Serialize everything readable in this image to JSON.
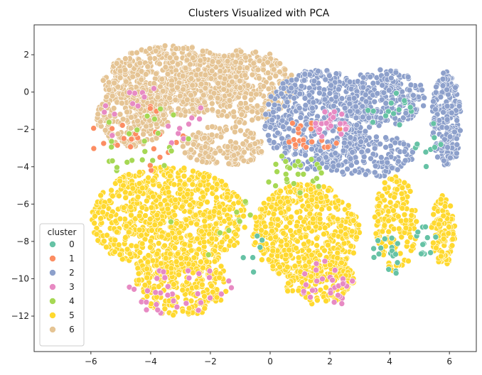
{
  "chart_data": {
    "type": "scatter",
    "title": "Clusters Visualized with PCA",
    "xlabel": "",
    "ylabel": "",
    "xlim": [
      -7.9,
      6.9
    ],
    "ylim": [
      -13.9,
      3.6
    ],
    "xticks": [
      -6,
      -4,
      -2,
      0,
      2,
      4,
      6
    ],
    "yticks": [
      2,
      0,
      -2,
      -4,
      -6,
      -8,
      -10,
      -12
    ],
    "grid": false,
    "legend": {
      "title": "cluster",
      "placement": "bottom-left",
      "entries": [
        "0",
        "1",
        "2",
        "3",
        "4",
        "5",
        "6"
      ]
    },
    "colors": {
      "0": "#66c2a5",
      "1": "#fc8d62",
      "2": "#8da0cb",
      "3": "#e78ac3",
      "4": "#a6d854",
      "5": "#ffd92f",
      "6": "#e5c494"
    },
    "series": [
      {
        "name": "6",
        "regions": [
          {
            "cx": -3.2,
            "cy": 0.6,
            "rx": 2.4,
            "ry": 1.9,
            "n": 700
          },
          {
            "cx": -0.8,
            "cy": 0.3,
            "rx": 1.6,
            "ry": 2.0,
            "n": 320
          },
          {
            "cx": -4.6,
            "cy": -1.3,
            "rx": 1.2,
            "ry": 1.6,
            "n": 200
          },
          {
            "cx": -1.6,
            "cy": -2.9,
            "rx": 1.4,
            "ry": 1.1,
            "n": 160
          }
        ]
      },
      {
        "name": "2",
        "regions": [
          {
            "cx": 1.6,
            "cy": -1.5,
            "rx": 1.8,
            "ry": 2.7,
            "n": 520
          },
          {
            "cx": 3.8,
            "cy": -0.3,
            "rx": 1.4,
            "ry": 1.5,
            "n": 240
          },
          {
            "cx": 5.9,
            "cy": -1.5,
            "rx": 0.5,
            "ry": 2.6,
            "n": 220
          },
          {
            "cx": 3.2,
            "cy": -3.4,
            "rx": 1.6,
            "ry": 1.2,
            "n": 160
          }
        ]
      },
      {
        "name": "5",
        "regions": [
          {
            "cx": -3.4,
            "cy": -6.8,
            "rx": 2.6,
            "ry": 2.8,
            "n": 800
          },
          {
            "cx": -3.0,
            "cy": -10.2,
            "rx": 1.6,
            "ry": 1.8,
            "n": 260
          },
          {
            "cx": 1.2,
            "cy": -7.5,
            "rx": 1.8,
            "ry": 2.6,
            "n": 520
          },
          {
            "cx": 1.6,
            "cy": -10.0,
            "rx": 1.2,
            "ry": 1.4,
            "n": 160
          },
          {
            "cx": 4.2,
            "cy": -7.0,
            "rx": 0.7,
            "ry": 2.6,
            "n": 160
          },
          {
            "cx": 5.8,
            "cy": -7.4,
            "rx": 0.4,
            "ry": 1.9,
            "n": 120
          }
        ]
      },
      {
        "name": "0",
        "regions": [
          {
            "cx": 3.9,
            "cy": -8.8,
            "rx": 0.5,
            "ry": 1.2,
            "n": 18
          },
          {
            "cx": 5.2,
            "cy": -7.8,
            "rx": 0.4,
            "ry": 1.0,
            "n": 12
          },
          {
            "cx": 4.0,
            "cy": -1.0,
            "rx": 0.8,
            "ry": 1.0,
            "n": 14
          },
          {
            "cx": 5.3,
            "cy": -3.0,
            "rx": 0.5,
            "ry": 1.5,
            "n": 10
          },
          {
            "cx": -0.5,
            "cy": -8.5,
            "rx": 0.5,
            "ry": 1.2,
            "n": 6
          }
        ]
      },
      {
        "name": "1",
        "regions": [
          {
            "cx": -4.4,
            "cy": -2.5,
            "rx": 1.6,
            "ry": 1.8,
            "n": 25
          },
          {
            "cx": 1.4,
            "cy": -2.3,
            "rx": 1.0,
            "ry": 0.9,
            "n": 25
          }
        ]
      },
      {
        "name": "3",
        "regions": [
          {
            "cx": -3.0,
            "cy": -10.6,
            "rx": 1.8,
            "ry": 1.4,
            "n": 35
          },
          {
            "cx": 1.9,
            "cy": -10.3,
            "rx": 0.9,
            "ry": 1.3,
            "n": 30
          },
          {
            "cx": 2.0,
            "cy": -1.8,
            "rx": 0.6,
            "ry": 0.9,
            "n": 25
          },
          {
            "cx": -4.0,
            "cy": -1.2,
            "rx": 1.8,
            "ry": 1.8,
            "n": 20
          }
        ]
      },
      {
        "name": "4",
        "regions": [
          {
            "cx": -4.4,
            "cy": -2.5,
            "rx": 1.8,
            "ry": 2.2,
            "n": 25
          },
          {
            "cx": 0.8,
            "cy": -4.5,
            "rx": 1.0,
            "ry": 1.2,
            "n": 25
          },
          {
            "cx": -2.0,
            "cy": -7.0,
            "rx": 1.6,
            "ry": 2.0,
            "n": 10
          }
        ]
      }
    ]
  }
}
